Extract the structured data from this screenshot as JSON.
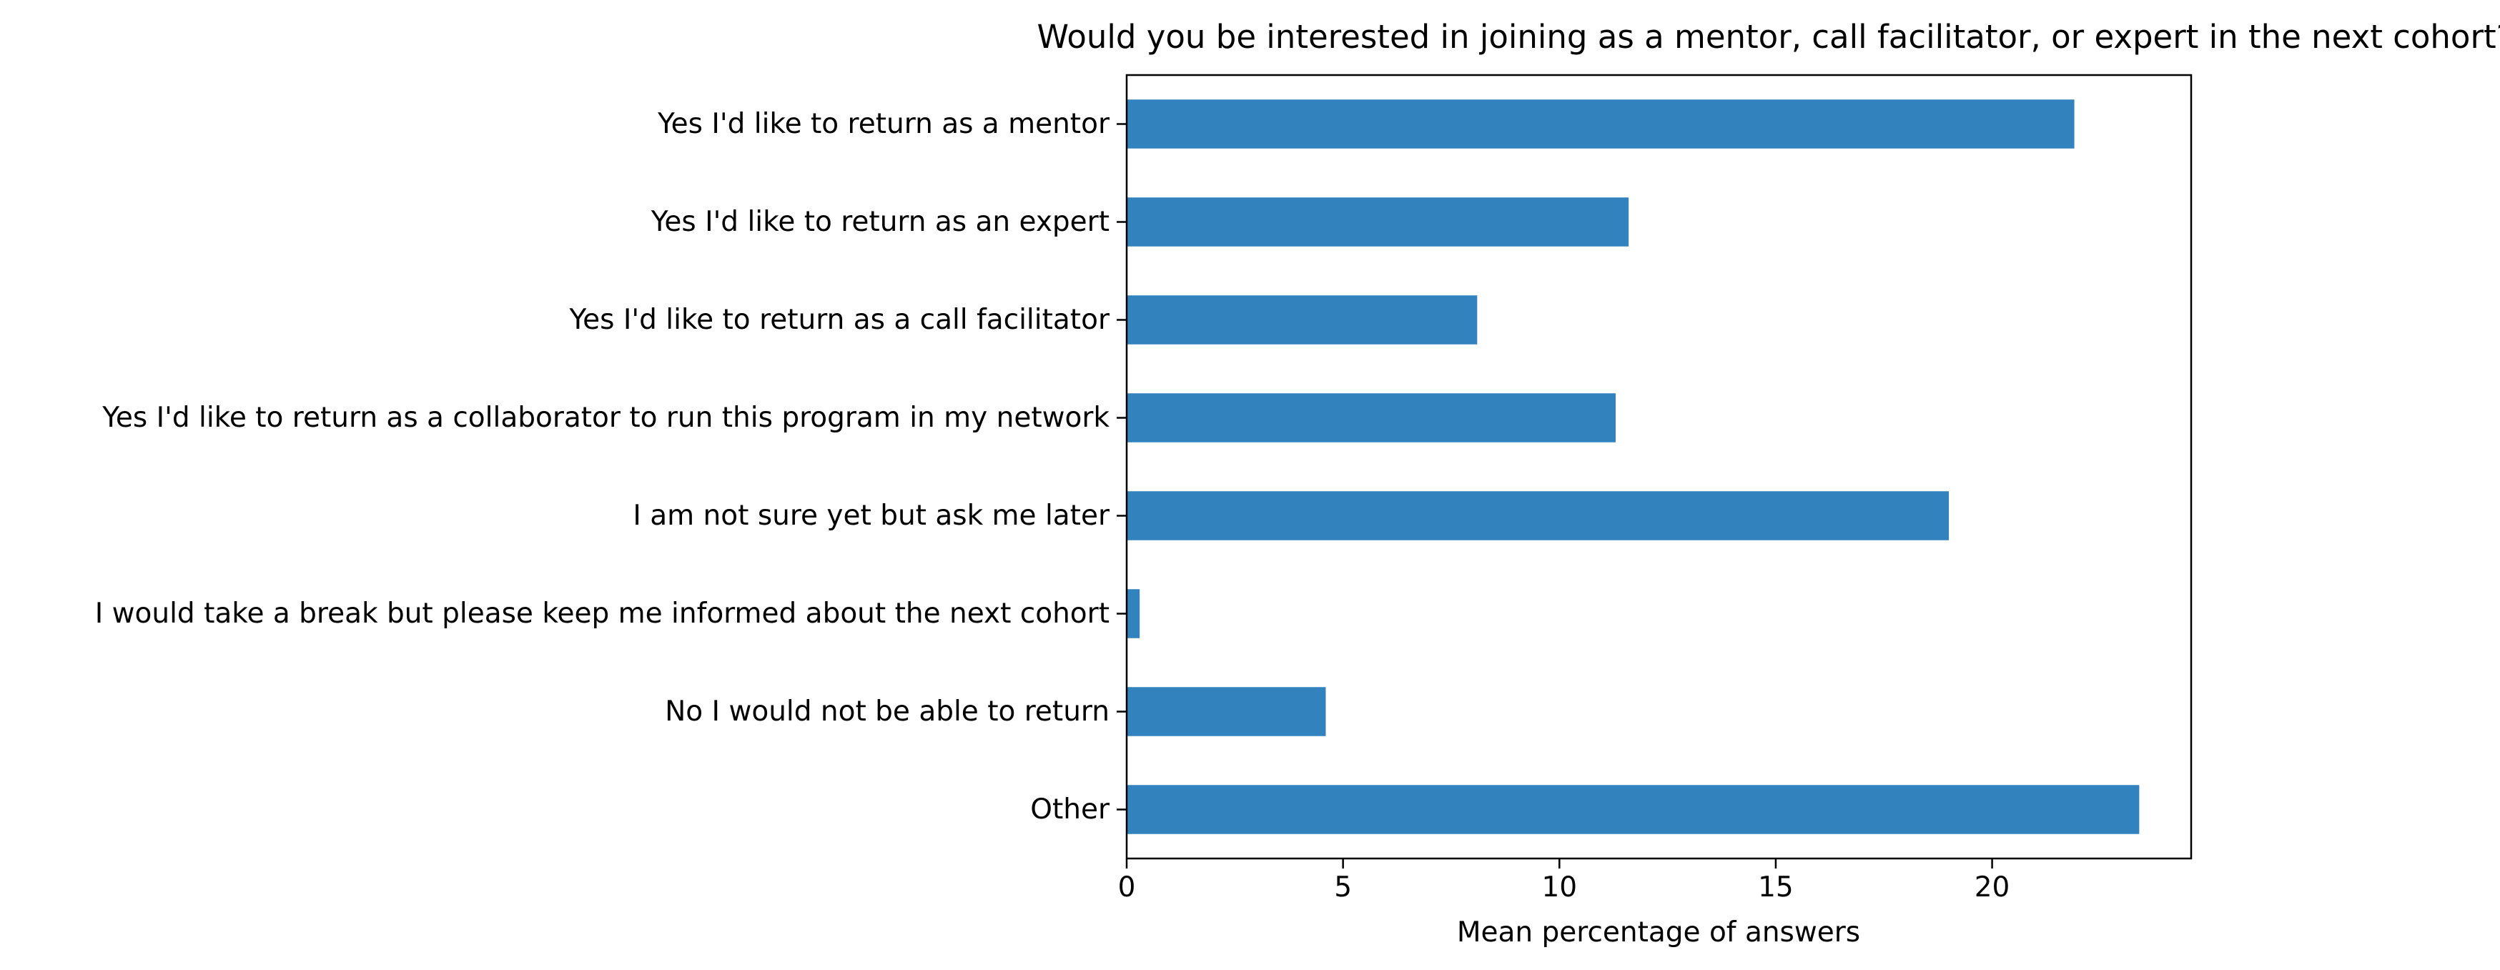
{
  "chart_data": {
    "type": "bar",
    "orientation": "horizontal",
    "title": "Would you be interested in joining as a mentor, call facilitator, or expert in the next cohort?",
    "xlabel": "Mean percentage of answers",
    "ylabel": "",
    "categories": [
      "Yes I'd like to return as a mentor",
      "Yes I'd like to return as an expert",
      "Yes I'd like to return as a call facilitator",
      "Yes I'd like to return as a collaborator to run this program in my network",
      "I am not sure yet but ask me later",
      "I would take a break but please keep me informed about the next cohort",
      "No I would not be able to return",
      "Other"
    ],
    "values": [
      21.9,
      11.6,
      8.1,
      11.3,
      19.0,
      0.3,
      4.6,
      23.4
    ],
    "xlim": [
      0,
      24.6
    ],
    "xticks": [
      0,
      5,
      10,
      15,
      20
    ],
    "grid": false,
    "legend": "none",
    "bar_color": "#3182bd"
  }
}
